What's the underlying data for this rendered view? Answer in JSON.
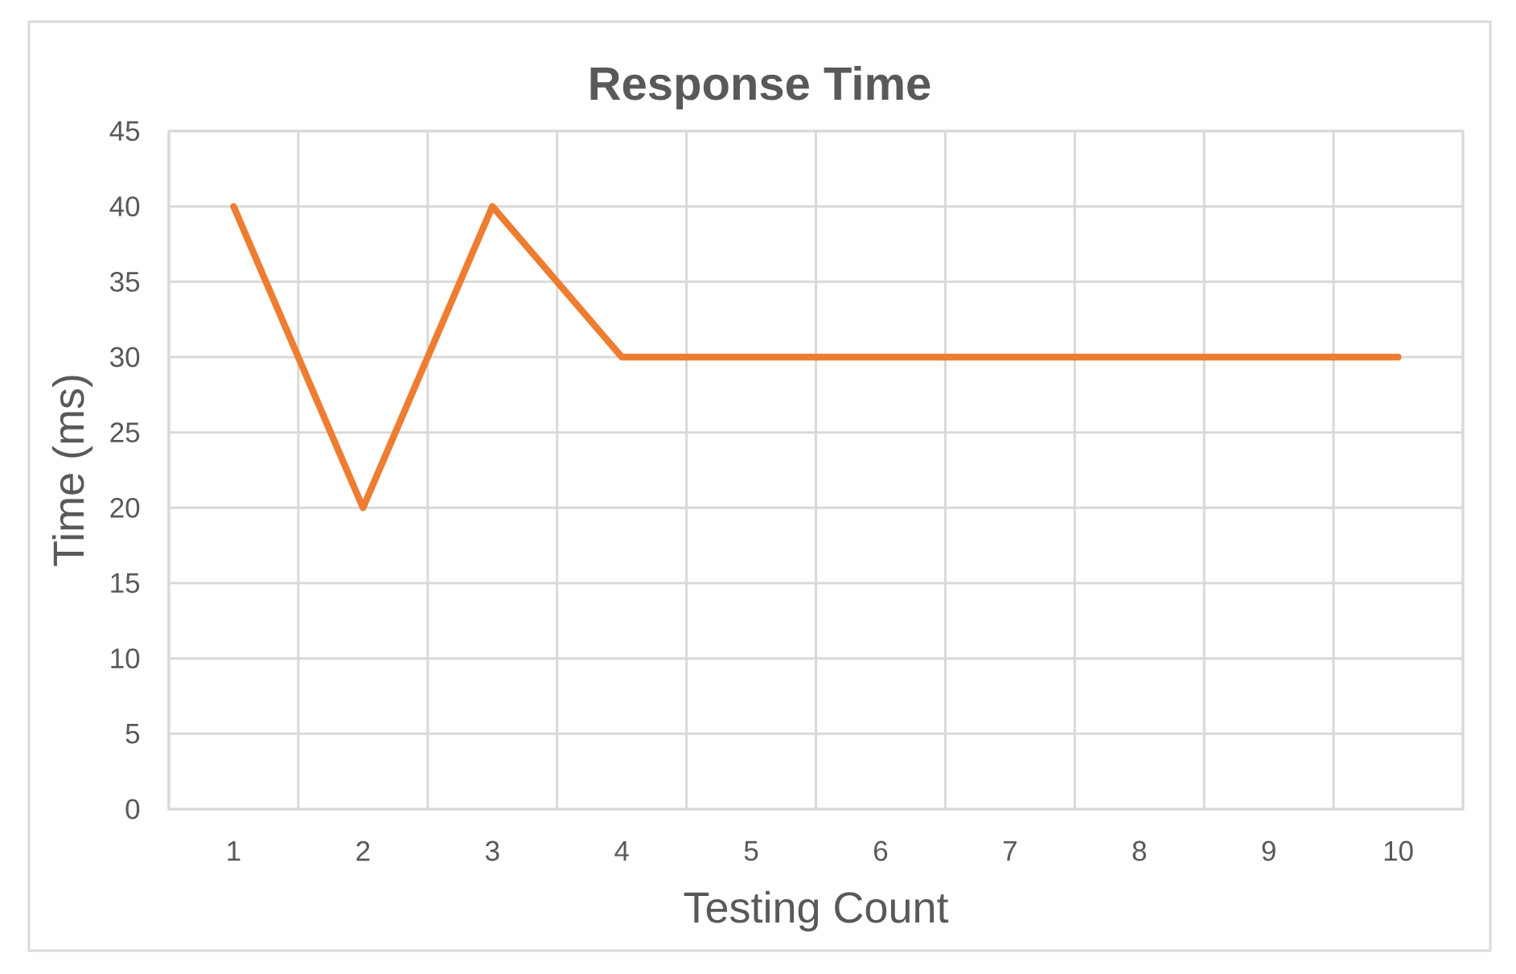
{
  "chart_data": {
    "type": "line",
    "title": "Response Time",
    "xlabel": "Testing Count",
    "ylabel": "Time (ms)",
    "categories": [
      "1",
      "2",
      "3",
      "4",
      "5",
      "6",
      "7",
      "8",
      "9",
      "10"
    ],
    "values": [
      40,
      20,
      40,
      30,
      30,
      30,
      30,
      30,
      30,
      30
    ],
    "color": "#ed7d31",
    "line_style": "solid",
    "ylim": [
      0,
      45
    ],
    "yticks": [
      0,
      5,
      10,
      15,
      20,
      25,
      30,
      35,
      40,
      45
    ],
    "grid": true
  }
}
